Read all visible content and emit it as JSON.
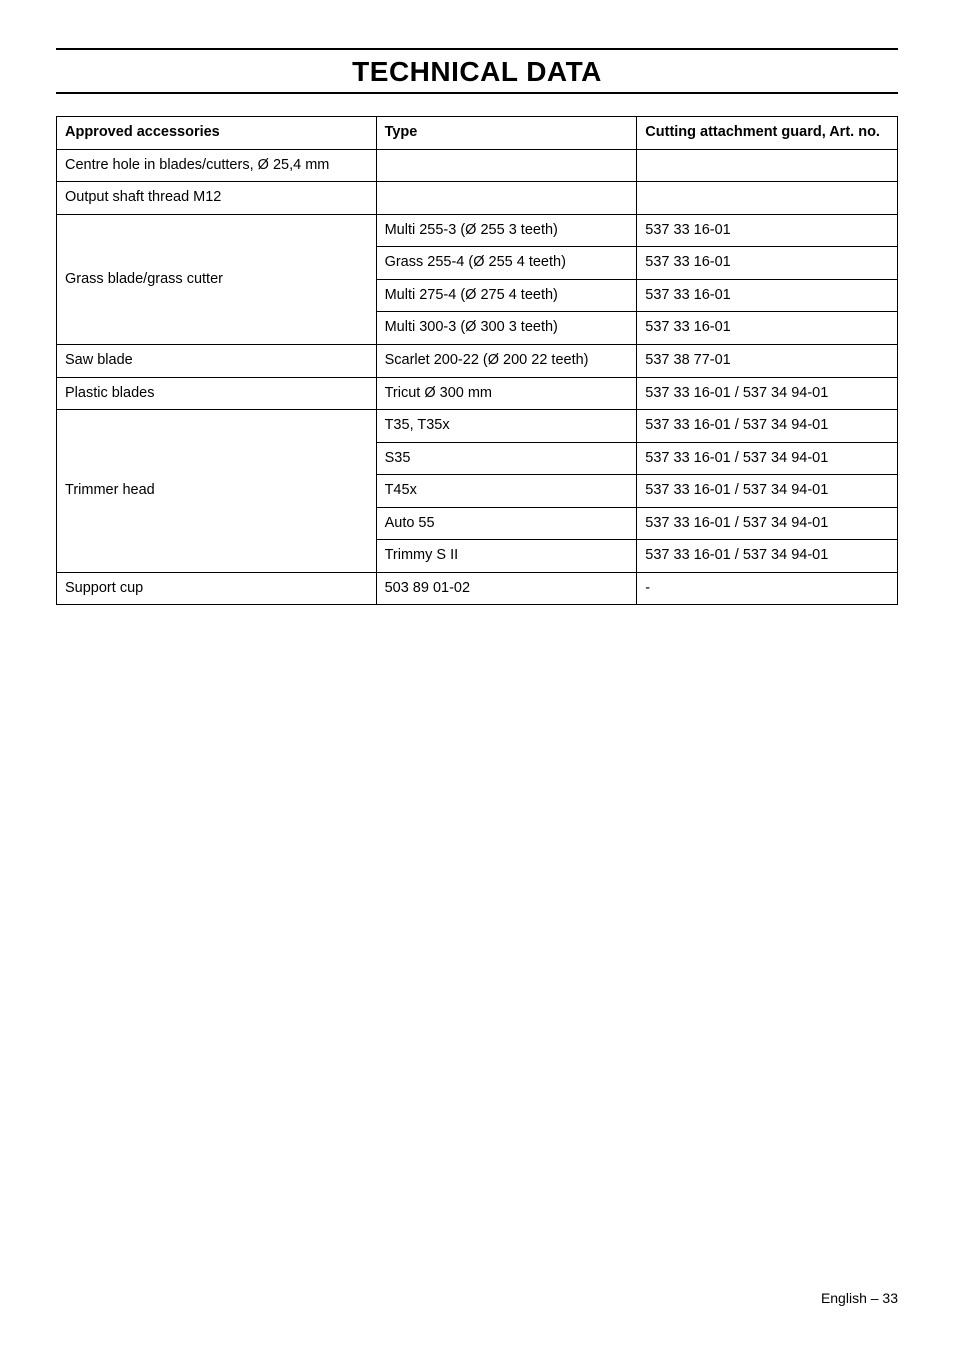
{
  "title": "TECHNICAL DATA",
  "headers": {
    "accessories": "Approved accessories",
    "type": "Type",
    "guard": "Cutting attachment guard, Art. no."
  },
  "rows": {
    "centre_hole": {
      "label": "Centre hole in blades/cutters, Ø 25,4 mm",
      "type": "",
      "guard": ""
    },
    "output_shaft": {
      "label": "Output shaft thread M12",
      "type": "",
      "guard": ""
    },
    "grass_blade": {
      "label": "Grass blade/grass cutter",
      "variants": [
        {
          "type": "Multi 255-3 (Ø 255 3 teeth)",
          "guard": "537 33 16-01"
        },
        {
          "type": "Grass 255-4 (Ø 255 4 teeth)",
          "guard": "537 33 16-01"
        },
        {
          "type": "Multi 275-4 (Ø 275 4 teeth)",
          "guard": "537 33 16-01"
        },
        {
          "type": "Multi 300-3 (Ø 300 3 teeth)",
          "guard": "537 33 16-01"
        }
      ]
    },
    "saw_blade": {
      "label": "Saw blade",
      "type": "Scarlet 200-22 (Ø 200 22 teeth)",
      "guard": "537 38 77-01"
    },
    "plastic_blades": {
      "label": "Plastic blades",
      "type": "Tricut Ø 300 mm",
      "guard": "537 33 16-01 / 537 34 94-01"
    },
    "trimmer_head": {
      "label": "Trimmer head",
      "variants": [
        {
          "type": "T35, T35x",
          "guard": "537 33 16-01 / 537 34 94-01"
        },
        {
          "type": "S35",
          "guard": "537 33 16-01 / 537 34 94-01"
        },
        {
          "type": "T45x",
          "guard": "537 33 16-01 / 537 34 94-01"
        },
        {
          "type": "Auto 55",
          "guard": "537 33 16-01 / 537 34 94-01"
        },
        {
          "type": "Trimmy S II",
          "guard": "537 33 16-01 / 537 34 94-01"
        }
      ]
    },
    "support_cup": {
      "label": "Support cup",
      "type": "503 89 01-02",
      "guard": "-"
    }
  },
  "footer": "English – 33"
}
